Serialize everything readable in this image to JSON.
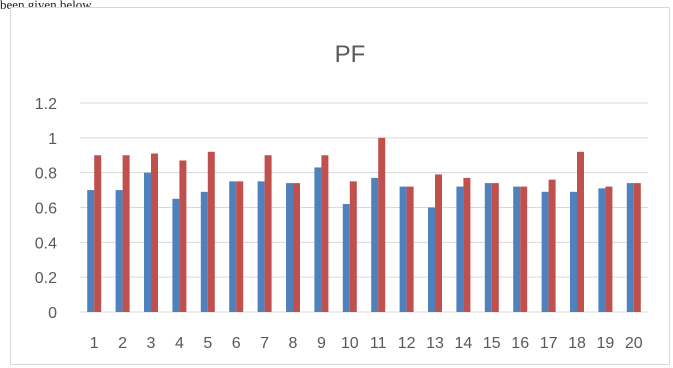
{
  "page": {
    "top_fragment": "been given below."
  },
  "chart_data": {
    "type": "bar",
    "title": "PF",
    "categories": [
      "1",
      "2",
      "3",
      "4",
      "5",
      "6",
      "7",
      "8",
      "9",
      "10",
      "11",
      "12",
      "13",
      "14",
      "15",
      "16",
      "17",
      "18",
      "19",
      "20"
    ],
    "series": [
      {
        "color": "#4f81bd",
        "values": [
          0.7,
          0.7,
          0.8,
          0.65,
          0.69,
          0.75,
          0.75,
          0.74,
          0.83,
          0.62,
          0.77,
          0.72,
          0.6,
          0.72,
          0.74,
          0.72,
          0.69,
          0.69,
          0.71,
          0.74
        ]
      },
      {
        "color": "#c0504d",
        "values": [
          0.9,
          0.9,
          0.91,
          0.87,
          0.92,
          0.75,
          0.9,
          0.74,
          0.9,
          0.75,
          1.0,
          0.72,
          0.79,
          0.77,
          0.74,
          0.72,
          0.76,
          0.92,
          0.72,
          0.74
        ]
      }
    ],
    "yticks": [
      "0",
      "0.2",
      "0.4",
      "0.6",
      "0.8",
      "1",
      "1.2"
    ],
    "ylim": [
      0,
      1.2
    ],
    "grid": true,
    "legend": "none"
  }
}
